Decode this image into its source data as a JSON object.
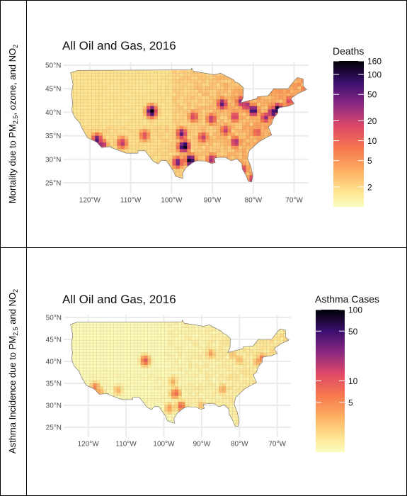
{
  "panels": [
    {
      "row_label": "Mortality due to PM",
      "row_label_sub": "2.5",
      "row_label_rest": ", ozone, and NO",
      "row_label_sub2": "2",
      "title": "All Oil and Gas, 2016",
      "legend_title": "Deaths",
      "legend_ticks": [
        2,
        5,
        10,
        20,
        50,
        100,
        160
      ],
      "legend_range": [
        1,
        160
      ],
      "palette": "magma",
      "intensity": 1.0,
      "hotspots": [
        {
          "lon": -104.9,
          "lat": 40.2,
          "v": 0.95
        },
        {
          "lon": -118.2,
          "lat": 34.2,
          "v": 0.75
        },
        {
          "lon": -117.0,
          "lat": 33.0,
          "v": 0.65
        },
        {
          "lon": -96.8,
          "lat": 32.8,
          "v": 0.92
        },
        {
          "lon": -95.4,
          "lat": 29.8,
          "v": 0.95
        },
        {
          "lon": -98.5,
          "lat": 29.4,
          "v": 0.7
        },
        {
          "lon": -97.5,
          "lat": 35.5,
          "v": 0.72
        },
        {
          "lon": -90.1,
          "lat": 30.0,
          "v": 0.62
        },
        {
          "lon": -87.6,
          "lat": 41.8,
          "v": 0.72
        },
        {
          "lon": -83.0,
          "lat": 42.3,
          "v": 0.62
        },
        {
          "lon": -80.0,
          "lat": 40.4,
          "v": 0.85
        },
        {
          "lon": -75.2,
          "lat": 40.0,
          "v": 0.8
        },
        {
          "lon": -74.0,
          "lat": 40.7,
          "v": 0.9
        },
        {
          "lon": -77.0,
          "lat": 38.9,
          "v": 0.62
        },
        {
          "lon": -84.4,
          "lat": 33.7,
          "v": 0.62
        },
        {
          "lon": -90.2,
          "lat": 38.6,
          "v": 0.55
        },
        {
          "lon": -86.8,
          "lat": 36.2,
          "v": 0.52
        },
        {
          "lon": -81.7,
          "lat": 41.5,
          "v": 0.62
        },
        {
          "lon": -84.5,
          "lat": 39.1,
          "v": 0.55
        },
        {
          "lon": -80.2,
          "lat": 25.8,
          "v": 0.55
        },
        {
          "lon": -82.5,
          "lat": 27.9,
          "v": 0.5
        },
        {
          "lon": -94.6,
          "lat": 39.1,
          "v": 0.5
        },
        {
          "lon": -97.3,
          "lat": 32.7,
          "v": 0.8
        },
        {
          "lon": -112.1,
          "lat": 33.5,
          "v": 0.55
        },
        {
          "lon": -106.6,
          "lat": 35.1,
          "v": 0.45
        },
        {
          "lon": -92.3,
          "lat": 34.7,
          "v": 0.52
        },
        {
          "lon": -79.0,
          "lat": 35.8,
          "v": 0.45
        },
        {
          "lon": -71.1,
          "lat": 42.4,
          "v": 0.5
        }
      ]
    },
    {
      "row_label": "Asthma Incidence due to PM",
      "row_label_sub": "2.5",
      "row_label_rest": " and NO",
      "row_label_sub2": "2",
      "title": "All Oil and Gas, 2016",
      "legend_title": "Asthma Cases",
      "legend_ticks": [
        5,
        10,
        50,
        100
      ],
      "legend_range": [
        1,
        100
      ],
      "palette": "magma",
      "intensity": 0.55,
      "hotspots": [
        {
          "lon": -104.9,
          "lat": 40.2,
          "v": 0.95
        },
        {
          "lon": -118.2,
          "lat": 34.2,
          "v": 0.7
        },
        {
          "lon": -117.0,
          "lat": 33.0,
          "v": 0.55
        },
        {
          "lon": -96.8,
          "lat": 32.8,
          "v": 0.85
        },
        {
          "lon": -95.4,
          "lat": 29.8,
          "v": 0.88
        },
        {
          "lon": -98.5,
          "lat": 29.4,
          "v": 0.55
        },
        {
          "lon": -97.5,
          "lat": 35.5,
          "v": 0.45
        },
        {
          "lon": -87.6,
          "lat": 41.8,
          "v": 0.55
        },
        {
          "lon": -75.2,
          "lat": 40.0,
          "v": 0.55
        },
        {
          "lon": -74.0,
          "lat": 40.7,
          "v": 0.7
        },
        {
          "lon": -80.0,
          "lat": 40.4,
          "v": 0.45
        },
        {
          "lon": -84.4,
          "lat": 33.7,
          "v": 0.5
        },
        {
          "lon": -90.1,
          "lat": 30.0,
          "v": 0.4
        },
        {
          "lon": -81.7,
          "lat": 41.5,
          "v": 0.4
        },
        {
          "lon": -97.3,
          "lat": 32.7,
          "v": 0.7
        },
        {
          "lon": -112.1,
          "lat": 33.5,
          "v": 0.45
        }
      ]
    }
  ],
  "chart_data": [
    {
      "type": "heatmap",
      "title": "All Oil and Gas, 2016",
      "ylabel": "Mortality due to PM2.5, ozone, and NO2",
      "xlabel": "",
      "x_ticks": [
        "120°W",
        "110°W",
        "100°W",
        "90°W",
        "80°W",
        "70°W"
      ],
      "x_tick_values": [
        -120,
        -110,
        -100,
        -90,
        -80,
        -70
      ],
      "y_ticks": [
        "25°N",
        "30°N",
        "35°N",
        "40°N",
        "45°N",
        "50°N"
      ],
      "y_tick_values": [
        25,
        30,
        35,
        40,
        45,
        50
      ],
      "xlim": [
        -127,
        -65
      ],
      "ylim": [
        24,
        50.5
      ],
      "legend": {
        "title": "Deaths",
        "scale": "log",
        "ticks": [
          2,
          5,
          10,
          20,
          50,
          100,
          160
        ],
        "placement": "right"
      },
      "colors": {
        "low": "#fcfdbf",
        "mid": "#f1605d",
        "high": "#000004"
      }
    },
    {
      "type": "heatmap",
      "title": "All Oil and Gas, 2016",
      "ylabel": "Asthma Incidence due to PM2.5 and NO2",
      "xlabel": "",
      "x_ticks": [
        "120°W",
        "110°W",
        "100°W",
        "90°W",
        "80°W",
        "70°W"
      ],
      "x_tick_values": [
        -120,
        -110,
        -100,
        -90,
        -80,
        -70
      ],
      "y_ticks": [
        "25°N",
        "30°N",
        "35°N",
        "40°N",
        "45°N",
        "50°N"
      ],
      "y_tick_values": [
        25,
        30,
        35,
        40,
        45,
        50
      ],
      "xlim": [
        -127,
        -65
      ],
      "ylim": [
        24,
        50.5
      ],
      "legend": {
        "title": "Asthma Cases",
        "scale": "log",
        "ticks": [
          5,
          10,
          50,
          100
        ],
        "placement": "right"
      },
      "colors": {
        "low": "#fcfdbf",
        "mid": "#f1605d",
        "high": "#000004"
      }
    }
  ]
}
